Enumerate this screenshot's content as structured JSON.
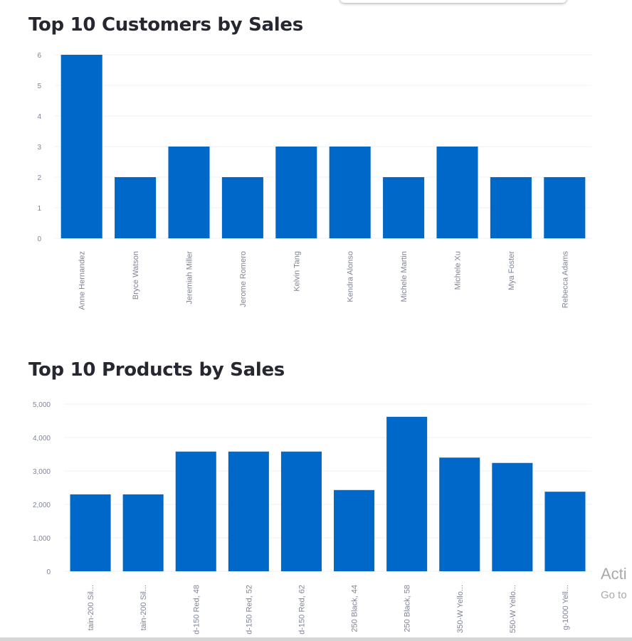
{
  "chart_data": [
    {
      "type": "bar",
      "title": "Top 10 Customers by Sales",
      "categories": [
        "Anne Hernandez",
        "Bryce Watson",
        "Jeremiah Miller",
        "Jerome Romero",
        "Kelvin Tang",
        "Kendra Alonso",
        "Michele Martin",
        "Michele Xu",
        "Mya Foster",
        "Rebecca Adams"
      ],
      "values": [
        6,
        2,
        3,
        2,
        3,
        3,
        2,
        3,
        2,
        2
      ],
      "yticks": [
        0,
        1,
        2,
        3,
        4,
        5,
        6
      ],
      "ytick_labels": [
        "0",
        "1",
        "2",
        "3",
        "4",
        "5",
        "6"
      ],
      "ylim": [
        0,
        6
      ],
      "xlabel": "",
      "ylabel": "",
      "grid": true,
      "color": "#0068c9"
    },
    {
      "type": "bar",
      "title": "Top 10 Products by Sales",
      "categories": [
        "tain-200 Sil...",
        "tain-200 Sil...",
        "d-150 Red, 48",
        "d-150 Red, 52",
        "d-150 Red, 62",
        "250 Black, 44",
        "250 Black, 58",
        "350-W Yello...",
        "550-W Yello...",
        "g-1000 Yell..."
      ],
      "values": [
        2300,
        2300,
        3580,
        3580,
        3580,
        2430,
        4620,
        3400,
        3240,
        2380
      ],
      "yticks": [
        0,
        1000,
        2000,
        3000,
        4000,
        5000
      ],
      "ytick_labels": [
        "0",
        "1,000",
        "2,000",
        "3,000",
        "4,000",
        "5,000"
      ],
      "ylim": [
        0,
        5000
      ],
      "xlabel": "",
      "ylabel": "",
      "grid": true,
      "color": "#0068c9"
    }
  ],
  "overlay": {
    "watermark_line1": "Acti",
    "watermark_line2": "Go to"
  }
}
